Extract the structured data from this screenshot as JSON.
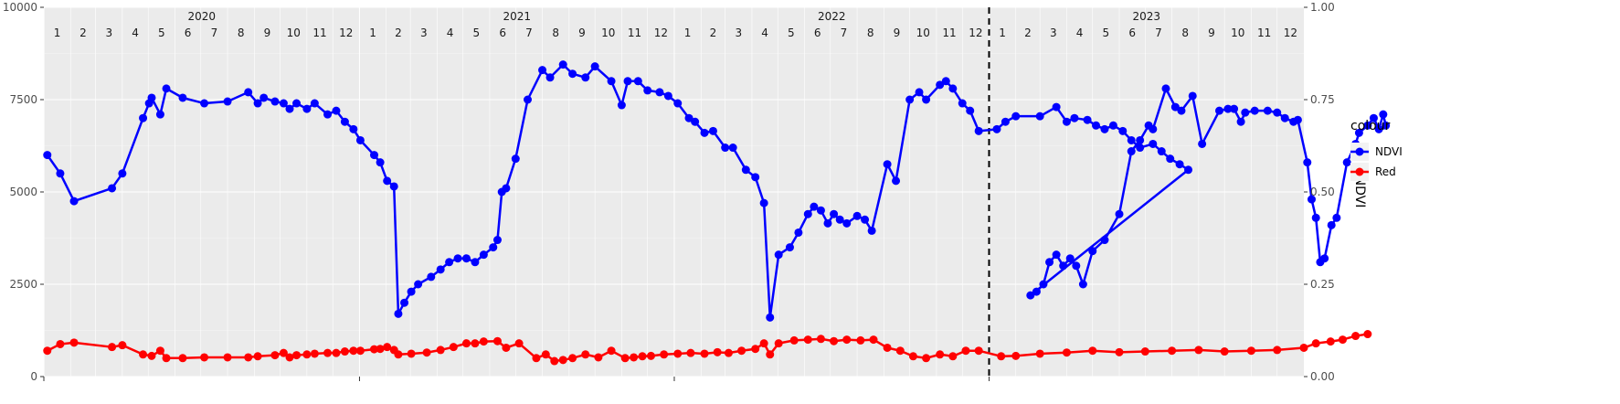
{
  "chart_data": {
    "type": "line",
    "x_start": "2020-01-01",
    "x_end": "2024-01-01",
    "years": [
      "2020",
      "2021",
      "2022",
      "2023"
    ],
    "months": [
      "1",
      "2",
      "3",
      "4",
      "5",
      "6",
      "7",
      "8",
      "9",
      "10",
      "11",
      "12"
    ],
    "y_left": {
      "lim": [
        0,
        10000
      ],
      "ticks": [
        "0",
        "2500",
        "5000",
        "7500",
        "10000"
      ]
    },
    "y_right": {
      "label": "NDVI",
      "lim": [
        0,
        1
      ],
      "ticks": [
        "0.00",
        "0.25",
        "0.50",
        "0.75",
        "1.00"
      ]
    },
    "vline_date": "2023-01-01",
    "legend": {
      "title": "colour",
      "position": "right"
    },
    "series": [
      {
        "name": "NDVI",
        "color": "#0000ff",
        "axis": "right",
        "points": [
          [
            "2020-01-05",
            0.6
          ],
          [
            "2020-01-20",
            0.55
          ],
          [
            "2020-02-05",
            0.475
          ],
          [
            "2020-03-20",
            0.51
          ],
          [
            "2020-04-01",
            0.55
          ],
          [
            "2020-04-25",
            0.7
          ],
          [
            "2020-05-02",
            0.74
          ],
          [
            "2020-05-05",
            0.755
          ],
          [
            "2020-05-15",
            0.71
          ],
          [
            "2020-05-22",
            0.78
          ],
          [
            "2020-06-10",
            0.755
          ],
          [
            "2020-07-05",
            0.74
          ],
          [
            "2020-08-01",
            0.745
          ],
          [
            "2020-08-25",
            0.77
          ],
          [
            "2020-09-05",
            0.74
          ],
          [
            "2020-09-12",
            0.755
          ],
          [
            "2020-09-25",
            0.745
          ],
          [
            "2020-10-05",
            0.74
          ],
          [
            "2020-10-12",
            0.725
          ],
          [
            "2020-10-20",
            0.74
          ],
          [
            "2020-11-01",
            0.725
          ],
          [
            "2020-11-10",
            0.74
          ],
          [
            "2020-11-25",
            0.71
          ],
          [
            "2020-12-05",
            0.72
          ],
          [
            "2020-12-15",
            0.69
          ],
          [
            "2020-12-25",
            0.67
          ],
          [
            "2021-01-02",
            0.64
          ],
          [
            "2021-01-18",
            0.6
          ],
          [
            "2021-01-25",
            0.58
          ],
          [
            "2021-02-02",
            0.53
          ],
          [
            "2021-02-10",
            0.515
          ],
          [
            "2021-02-15",
            0.17
          ],
          [
            "2021-02-22",
            0.2
          ],
          [
            "2021-03-02",
            0.23
          ],
          [
            "2021-03-10",
            0.25
          ],
          [
            "2021-03-25",
            0.27
          ],
          [
            "2021-04-05",
            0.29
          ],
          [
            "2021-04-15",
            0.31
          ],
          [
            "2021-04-25",
            0.32
          ],
          [
            "2021-05-05",
            0.32
          ],
          [
            "2021-05-15",
            0.31
          ],
          [
            "2021-05-25",
            0.33
          ],
          [
            "2021-06-05",
            0.35
          ],
          [
            "2021-06-10",
            0.37
          ],
          [
            "2021-06-15",
            0.5
          ],
          [
            "2021-06-20",
            0.51
          ],
          [
            "2021-07-01",
            0.59
          ],
          [
            "2021-07-15",
            0.75
          ],
          [
            "2021-08-01",
            0.83
          ],
          [
            "2021-08-10",
            0.81
          ],
          [
            "2021-08-25",
            0.845
          ],
          [
            "2021-09-05",
            0.82
          ],
          [
            "2021-09-20",
            0.81
          ],
          [
            "2021-10-01",
            0.84
          ],
          [
            "2021-10-20",
            0.8
          ],
          [
            "2021-11-01",
            0.735
          ],
          [
            "2021-11-08",
            0.8
          ],
          [
            "2021-11-20",
            0.8
          ],
          [
            "2021-12-01",
            0.775
          ],
          [
            "2021-12-15",
            0.77
          ],
          [
            "2021-12-25",
            0.76
          ],
          [
            "2022-01-05",
            0.74
          ],
          [
            "2022-01-18",
            0.7
          ],
          [
            "2022-01-25",
            0.69
          ],
          [
            "2022-02-05",
            0.66
          ],
          [
            "2022-02-15",
            0.665
          ],
          [
            "2022-03-01",
            0.62
          ],
          [
            "2022-03-10",
            0.62
          ],
          [
            "2022-03-25",
            0.56
          ],
          [
            "2022-04-05",
            0.54
          ],
          [
            "2022-04-15",
            0.47
          ],
          [
            "2022-04-22",
            0.16
          ],
          [
            "2022-05-02",
            0.33
          ],
          [
            "2022-05-15",
            0.35
          ],
          [
            "2022-05-25",
            0.39
          ],
          [
            "2022-06-05",
            0.44
          ],
          [
            "2022-06-12",
            0.46
          ],
          [
            "2022-06-20",
            0.45
          ],
          [
            "2022-06-28",
            0.415
          ],
          [
            "2022-07-05",
            0.44
          ],
          [
            "2022-07-12",
            0.425
          ],
          [
            "2022-07-20",
            0.415
          ],
          [
            "2022-08-01",
            0.435
          ],
          [
            "2022-08-10",
            0.425
          ],
          [
            "2022-08-18",
            0.395
          ],
          [
            "2022-09-05",
            0.575
          ],
          [
            "2022-09-15",
            0.53
          ],
          [
            "2022-10-01",
            0.75
          ],
          [
            "2022-10-12",
            0.77
          ],
          [
            "2022-10-20",
            0.75
          ],
          [
            "2022-11-05",
            0.79
          ],
          [
            "2022-11-12",
            0.8
          ],
          [
            "2022-11-20",
            0.78
          ],
          [
            "2022-12-01",
            0.74
          ],
          [
            "2022-12-10",
            0.72
          ],
          [
            "2022-12-20",
            0.665
          ],
          [
            "2023-01-10",
            0.67
          ],
          [
            "2023-01-20",
            0.69
          ],
          [
            "2023-02-01",
            0.705
          ],
          [
            "2023-03-01",
            0.705
          ],
          [
            "2023-03-20",
            0.73
          ],
          [
            "2023-04-01",
            0.69
          ],
          [
            "2023-04-10",
            0.7
          ],
          [
            "2023-04-25",
            0.695
          ],
          [
            "2023-05-05",
            0.68
          ],
          [
            "2023-05-15",
            0.67
          ],
          [
            "2023-05-25",
            0.68
          ],
          [
            "2023-06-05",
            0.665
          ],
          [
            "2023-06-15",
            0.64
          ],
          [
            "2023-06-25",
            0.62
          ],
          [
            "2023-07-10",
            0.63
          ],
          [
            "2023-07-20",
            0.61
          ],
          [
            "2023-07-30",
            0.59
          ],
          [
            "2023-08-10",
            0.575
          ],
          [
            "2023-08-20",
            0.56
          ],
          [
            "2023-02-18",
            0.22
          ],
          [
            "2023-02-25",
            0.23
          ],
          [
            "2023-03-05",
            0.25
          ],
          [
            "2023-03-12",
            0.31
          ],
          [
            "2023-03-20",
            0.33
          ],
          [
            "2023-03-28",
            0.3
          ],
          [
            "2023-04-05",
            0.32
          ],
          [
            "2023-04-12",
            0.3
          ],
          [
            "2023-04-20",
            0.25
          ],
          [
            "2023-05-01",
            0.34
          ],
          [
            "2023-05-15",
            0.37
          ],
          [
            "2023-06-01",
            0.44
          ],
          [
            "2023-06-15",
            0.61
          ],
          [
            "2023-06-25",
            0.64
          ],
          [
            "2023-07-05",
            0.68
          ],
          [
            "2023-07-10",
            0.67
          ],
          [
            "2023-07-25",
            0.78
          ],
          [
            "2023-08-05",
            0.73
          ],
          [
            "2023-08-12",
            0.72
          ],
          [
            "2023-08-25",
            0.76
          ],
          [
            "2023-09-05",
            0.63
          ],
          [
            "2023-09-25",
            0.72
          ],
          [
            "2023-10-05",
            0.725
          ],
          [
            "2023-10-12",
            0.725
          ],
          [
            "2023-10-20",
            0.69
          ],
          [
            "2023-10-25",
            0.715
          ],
          [
            "2023-11-05",
            0.72
          ],
          [
            "2023-11-20",
            0.72
          ],
          [
            "2023-12-01",
            0.715
          ],
          [
            "2023-12-10",
            0.7
          ],
          [
            "2023-12-20",
            0.69
          ],
          [
            "2023-12-25",
            0.695
          ],
          [
            "2024-01-05",
            0.58
          ],
          [
            "2024-01-10",
            0.48
          ],
          [
            "2024-01-15",
            0.43
          ],
          [
            "2024-01-20",
            0.31
          ],
          [
            "2024-01-25",
            0.32
          ],
          [
            "2024-02-02",
            0.41
          ],
          [
            "2024-02-08",
            0.43
          ],
          [
            "2024-02-20",
            0.58
          ],
          [
            "2024-03-01",
            0.63
          ],
          [
            "2024-03-05",
            0.66
          ],
          [
            "2024-03-15",
            0.68
          ],
          [
            "2024-03-22",
            0.7
          ],
          [
            "2024-03-28",
            0.67
          ],
          [
            "2024-04-02",
            0.71
          ],
          [
            "2024-04-05",
            0.68
          ]
        ]
      },
      {
        "name": "Red",
        "color": "#ff0000",
        "axis": "left",
        "points": [
          [
            "2020-01-05",
            700
          ],
          [
            "2020-01-20",
            880
          ],
          [
            "2020-02-05",
            920
          ],
          [
            "2020-03-20",
            800
          ],
          [
            "2020-04-01",
            850
          ],
          [
            "2020-04-25",
            600
          ],
          [
            "2020-05-05",
            560
          ],
          [
            "2020-05-15",
            700
          ],
          [
            "2020-05-22",
            500
          ],
          [
            "2020-06-10",
            500
          ],
          [
            "2020-07-05",
            520
          ],
          [
            "2020-08-01",
            520
          ],
          [
            "2020-08-25",
            520
          ],
          [
            "2020-09-05",
            550
          ],
          [
            "2020-09-25",
            580
          ],
          [
            "2020-10-05",
            640
          ],
          [
            "2020-10-12",
            520
          ],
          [
            "2020-10-20",
            580
          ],
          [
            "2020-11-01",
            600
          ],
          [
            "2020-11-10",
            620
          ],
          [
            "2020-11-25",
            640
          ],
          [
            "2020-12-05",
            640
          ],
          [
            "2020-12-15",
            680
          ],
          [
            "2020-12-25",
            700
          ],
          [
            "2021-01-02",
            700
          ],
          [
            "2021-01-18",
            740
          ],
          [
            "2021-01-25",
            750
          ],
          [
            "2021-02-02",
            800
          ],
          [
            "2021-02-10",
            720
          ],
          [
            "2021-02-15",
            600
          ],
          [
            "2021-03-02",
            620
          ],
          [
            "2021-03-20",
            650
          ],
          [
            "2021-04-05",
            720
          ],
          [
            "2021-04-20",
            800
          ],
          [
            "2021-05-05",
            900
          ],
          [
            "2021-05-15",
            900
          ],
          [
            "2021-05-25",
            950
          ],
          [
            "2021-06-10",
            960
          ],
          [
            "2021-06-20",
            780
          ],
          [
            "2021-07-05",
            900
          ],
          [
            "2021-07-25",
            500
          ],
          [
            "2021-08-05",
            600
          ],
          [
            "2021-08-15",
            420
          ],
          [
            "2021-08-25",
            450
          ],
          [
            "2021-09-05",
            500
          ],
          [
            "2021-09-20",
            600
          ],
          [
            "2021-10-05",
            520
          ],
          [
            "2021-10-20",
            700
          ],
          [
            "2021-11-05",
            500
          ],
          [
            "2021-11-15",
            520
          ],
          [
            "2021-11-25",
            550
          ],
          [
            "2021-12-05",
            560
          ],
          [
            "2021-12-20",
            600
          ],
          [
            "2022-01-05",
            620
          ],
          [
            "2022-01-20",
            640
          ],
          [
            "2022-02-05",
            620
          ],
          [
            "2022-02-20",
            660
          ],
          [
            "2022-03-05",
            640
          ],
          [
            "2022-03-20",
            700
          ],
          [
            "2022-04-05",
            750
          ],
          [
            "2022-04-15",
            900
          ],
          [
            "2022-04-22",
            600
          ],
          [
            "2022-05-02",
            900
          ],
          [
            "2022-05-20",
            980
          ],
          [
            "2022-06-05",
            1000
          ],
          [
            "2022-06-20",
            1020
          ],
          [
            "2022-07-05",
            960
          ],
          [
            "2022-07-20",
            1000
          ],
          [
            "2022-08-05",
            980
          ],
          [
            "2022-08-20",
            1000
          ],
          [
            "2022-09-05",
            780
          ],
          [
            "2022-09-20",
            700
          ],
          [
            "2022-10-05",
            550
          ],
          [
            "2022-10-20",
            500
          ],
          [
            "2022-11-05",
            600
          ],
          [
            "2022-11-20",
            550
          ],
          [
            "2022-12-05",
            700
          ],
          [
            "2022-12-20",
            700
          ],
          [
            "2023-01-15",
            550
          ],
          [
            "2023-02-01",
            560
          ],
          [
            "2023-03-01",
            620
          ],
          [
            "2023-04-01",
            650
          ],
          [
            "2023-05-01",
            700
          ],
          [
            "2023-06-01",
            660
          ],
          [
            "2023-07-01",
            680
          ],
          [
            "2023-08-01",
            700
          ],
          [
            "2023-09-01",
            720
          ],
          [
            "2023-10-01",
            680
          ],
          [
            "2023-11-01",
            700
          ],
          [
            "2023-12-01",
            720
          ],
          [
            "2024-01-01",
            780
          ],
          [
            "2024-01-15",
            900
          ],
          [
            "2024-02-01",
            950
          ],
          [
            "2024-02-15",
            1000
          ],
          [
            "2024-03-01",
            1100
          ],
          [
            "2024-03-15",
            1150
          ]
        ]
      }
    ]
  }
}
